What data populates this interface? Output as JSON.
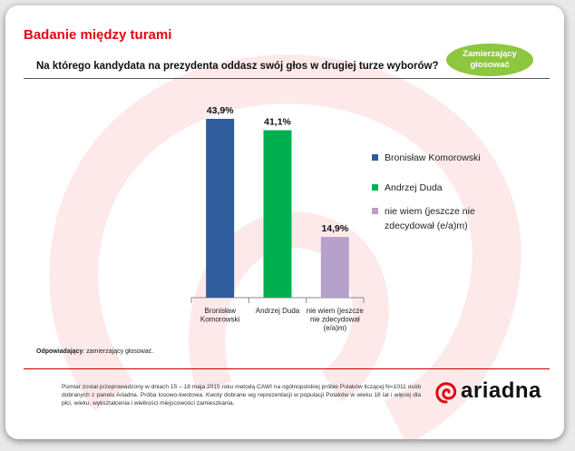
{
  "slide": {
    "title": "Badanie między turami",
    "badge": "Zamierzający głosować",
    "question": "Na którego kandydata na prezydenta oddasz swój głos w drugiej turze wyborów?",
    "respondents_label": "Odpowiadający",
    "respondents_value": ": zamierzający głosować.",
    "note": "Pomiar został przeprowadzony w dniach 15 – 18 maja 2015 roku metodą CAWI na ogólnopolskiej próbie Polaków liczącej N=1011 osób dobranych z panelu Ariadna. Próba losowo-kwotowa. Kwoty dobrane wg reprezentacji w populacji Polaków w wieku 18 lat i więcej dla płci, wieku, wykształcenia i wielkości miejscowości zamieszkania.",
    "logo_text": "ariadna"
  },
  "colors": {
    "title_red": "#e30613",
    "badge_green": "#8dc63f",
    "logo_red": "#e30613"
  },
  "chart_data": {
    "type": "bar",
    "categories": [
      "Bronisław Komorowski",
      "Andrzej Duda",
      "nie wiem (jeszcze nie zdecydował (e/a)m)"
    ],
    "category_labels": [
      [
        "Bronisław",
        "Komorowski"
      ],
      [
        "Andrzej Duda"
      ],
      [
        "nie wiem (jeszcze",
        "nie zdecydował",
        "(e/a)m)"
      ]
    ],
    "values": [
      43.9,
      41.1,
      14.9
    ],
    "value_labels": [
      "43,9%",
      "41,1%",
      "14,9%"
    ],
    "colors": [
      "#2e5c9c",
      "#00b050",
      "#b6a0cc"
    ],
    "legend": [
      {
        "lines": [
          "Bronisław Komorowski"
        ],
        "color": "#2e5c9c"
      },
      {
        "lines": [
          "Andrzej Duda"
        ],
        "color": "#00b050"
      },
      {
        "lines": [
          "nie wiem (jeszcze nie",
          "zdecydował (e/a)m)"
        ],
        "color": "#b6a0cc"
      }
    ],
    "legend_position": "right",
    "ylim": [
      0,
      45
    ],
    "grid": false
  }
}
